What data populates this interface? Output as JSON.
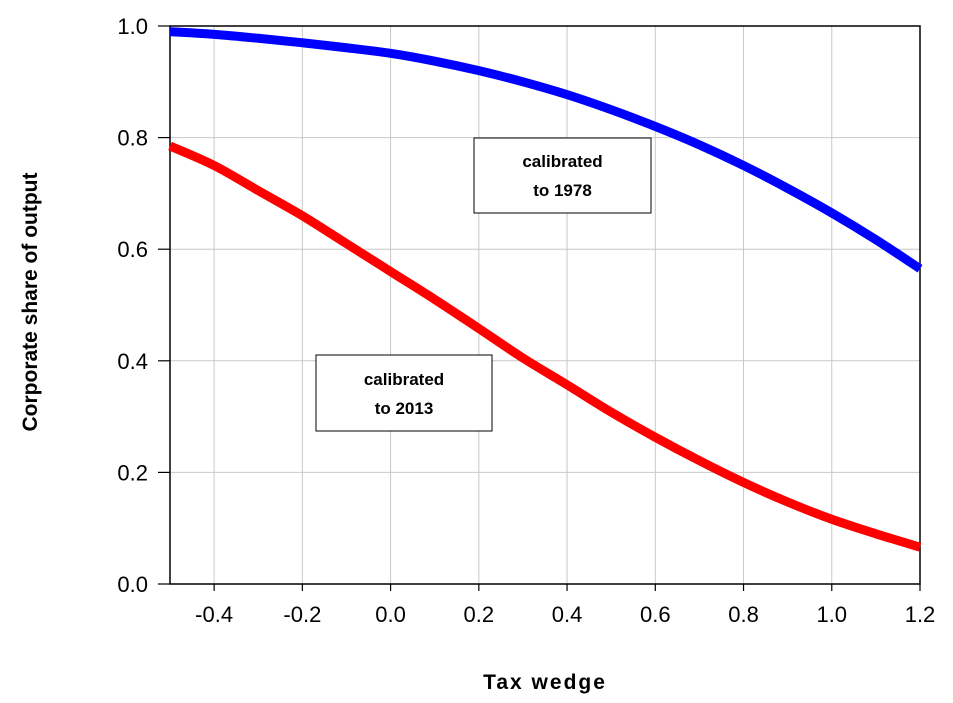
{
  "chart_data": {
    "type": "line",
    "title": "",
    "xlabel": "Tax wedge",
    "ylabel": "Corporate share of output",
    "xlim": [
      -0.5,
      1.2
    ],
    "ylim": [
      0.0,
      1.0
    ],
    "xticks": [
      "-0.4",
      "-0.2",
      "0.0",
      "0.2",
      "0.4",
      "0.6",
      "0.8",
      "1.0",
      "1.2"
    ],
    "yticks": [
      "0.0",
      "0.2",
      "0.4",
      "0.6",
      "0.8",
      "1.0"
    ],
    "grid": true,
    "legend": "none",
    "x": [
      -0.5,
      -0.4,
      -0.3,
      -0.2,
      -0.1,
      0.0,
      0.1,
      0.2,
      0.3,
      0.4,
      0.5,
      0.6,
      0.7,
      0.8,
      0.9,
      1.0,
      1.1,
      1.2
    ],
    "series": [
      {
        "color": "#0000ff",
        "values": [
          0.99,
          0.985,
          0.978,
          0.97,
          0.961,
          0.951,
          0.937,
          0.92,
          0.9,
          0.877,
          0.85,
          0.82,
          0.787,
          0.75,
          0.709,
          0.665,
          0.617,
          0.565
        ]
      },
      {
        "color": "#ff0000",
        "values": [
          0.785,
          0.75,
          0.705,
          0.66,
          0.61,
          0.56,
          0.51,
          0.458,
          0.405,
          0.357,
          0.308,
          0.263,
          0.221,
          0.182,
          0.147,
          0.116,
          0.09,
          0.066
        ]
      }
    ],
    "annotations": [
      {
        "line1": "calibrated",
        "line2": "to 1978"
      },
      {
        "line1": "calibrated",
        "line2": "to 2013"
      }
    ]
  }
}
